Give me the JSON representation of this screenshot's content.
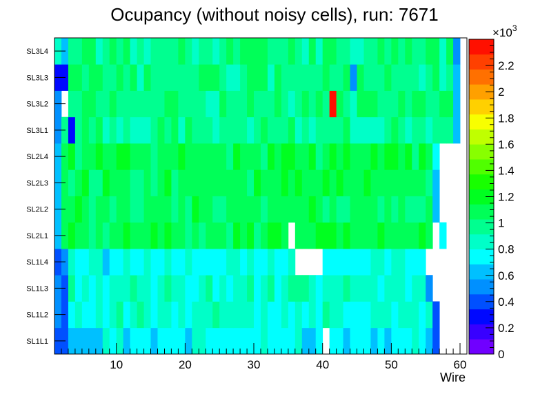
{
  "chart_data": {
    "type": "heatmap",
    "title": "Ocupancy (without noisy cells), run: 7671",
    "xlabel": "Wire",
    "ylabel": "",
    "xlim": [
      1,
      61
    ],
    "x_ticks": [
      10,
      20,
      30,
      40,
      50,
      60
    ],
    "layers": [
      "SL1L1",
      "SL1L2",
      "SL1L3",
      "SL1L4",
      "SL2L1",
      "SL2L2",
      "SL2L3",
      "SL2L4",
      "SL3L1",
      "SL3L2",
      "SL3L3",
      "SL3L4"
    ],
    "color_scale": {
      "min": 0,
      "max": 2400,
      "multiplier_label": "×10",
      "multiplier_exp": "3",
      "tick_values": [
        0,
        200,
        400,
        600,
        800,
        1000,
        1200,
        1400,
        1600,
        1800,
        2000,
        2200
      ],
      "tick_labels": [
        "0",
        "0.2",
        "0.4",
        "0.6",
        "0.8",
        "1",
        "1.2",
        "1.4",
        "1.6",
        "1.8",
        "2",
        "2.2"
      ],
      "colors": [
        "#7000ff",
        "#3800ff",
        "#0008ff",
        "#0050ff",
        "#0090ff",
        "#00c0ff",
        "#00ffff",
        "#00ffc8",
        "#00ff90",
        "#00ff58",
        "#00ff20",
        "#18ff00",
        "#50ff00",
        "#88ff00",
        "#c0ff00",
        "#f8ff00",
        "#ffd000",
        "#ffa000",
        "#ff7000",
        "#ff4000",
        "#ff1000"
      ]
    },
    "layer_profiles": {
      "SL1L1": {
        "first": 1,
        "last": 56,
        "base": 750,
        "low_edge": 2,
        "value_overrides": {
          "3": 600,
          "4": 600,
          "5": 600,
          "6": 600,
          "7": 650,
          "40": 0
        }
      },
      "SL1L2": {
        "first": 1,
        "last": 56,
        "base": 830,
        "low_edge": 2,
        "value_overrides": {}
      },
      "SL1L3": {
        "first": 1,
        "last": 55,
        "base": 850,
        "low_edge": 2,
        "value_overrides": {}
      },
      "SL1L4": {
        "first": 1,
        "last": 55,
        "base": 780,
        "low_edge": 2,
        "value_overrides": {
          "36": 0,
          "37": 0,
          "38": 0,
          "39": 0,
          "55": 0
        }
      },
      "SL2L1": {
        "first": 1,
        "last": 57,
        "base": 1110,
        "low_edge": 1,
        "value_overrides": {
          "35": 0,
          "56": 0
        }
      },
      "SL2L2": {
        "first": 1,
        "last": 56,
        "base": 1060,
        "low_edge": 1,
        "value_overrides": {}
      },
      "SL2L3": {
        "first": 1,
        "last": 56,
        "base": 1100,
        "low_edge": 1,
        "value_overrides": {}
      },
      "SL2L4": {
        "first": 1,
        "last": 56,
        "base": 1100,
        "low_edge": 1,
        "value_overrides": {}
      },
      "SL3L1": {
        "first": 1,
        "last": 59,
        "base": 960,
        "low_edge": 1,
        "value_overrides": {
          "3": 250
        }
      },
      "SL3L2": {
        "first": 1,
        "last": 59,
        "base": 1000,
        "low_edge": 1,
        "value_overrides": {
          "2": 0,
          "41": 2400,
          "44": 850
        }
      },
      "SL3L3": {
        "first": 1,
        "last": 59,
        "base": 1000,
        "low_edge": 1,
        "value_overrides": {
          "1": 300,
          "2": 250,
          "44": 550
        }
      },
      "SL3L4": {
        "first": 1,
        "last": 59,
        "base": 990,
        "low_edge": 1,
        "value_overrides": {
          "1": 850,
          "2": 650,
          "44": 850
        }
      }
    }
  }
}
